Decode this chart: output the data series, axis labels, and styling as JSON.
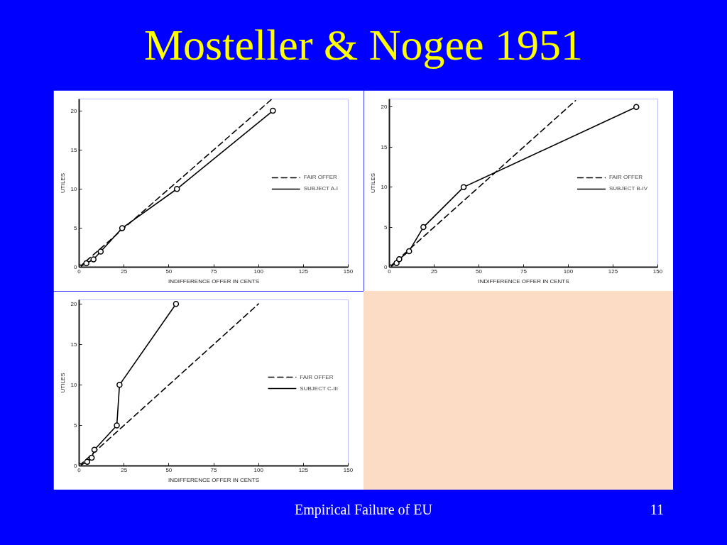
{
  "chart_data": [
    {
      "type": "line",
      "title": "Mosteller & Nogee 1951",
      "xlabel": "INDIFFERENCE OFFER IN CENTS",
      "ylabel": "UTILES",
      "xlim": [
        0,
        150
      ],
      "ylim": [
        0,
        21.5
      ],
      "xticks": [
        0,
        25,
        50,
        75,
        100,
        125,
        150
      ],
      "yticks": [
        0,
        5,
        10,
        15,
        20
      ],
      "legend": "right",
      "series": [
        {
          "name": "FAIR OFFER",
          "color": "#000000",
          "line_style": "dashed",
          "x": [
            0,
            107.5
          ],
          "values": [
            0,
            21.5
          ]
        },
        {
          "name": "SUBJECT A-I",
          "color": "#000000",
          "marker": "circle",
          "x": [
            0,
            4,
            8,
            12,
            24,
            54.5,
            108
          ],
          "values": [
            0,
            0.5,
            1,
            2,
            5,
            10,
            20
          ]
        }
      ]
    },
    {
      "type": "line",
      "xlabel": "INDIFFERENCE OFFER IN CENTS",
      "ylabel": "UTILES",
      "xlim": [
        0,
        150
      ],
      "ylim": [
        0,
        21
      ],
      "xticks": [
        0,
        25,
        50,
        75,
        100,
        125,
        150
      ],
      "yticks": [
        0,
        5,
        10,
        15,
        20
      ],
      "legend": "right",
      "series": [
        {
          "name": "FAIR OFFER",
          "color": "#000000",
          "line_style": "dashed",
          "x": [
            0,
            104
          ],
          "values": [
            0,
            20.8
          ]
        },
        {
          "name": "SUBJECT B-IV",
          "color": "#000000",
          "marker": "circle",
          "x": [
            0,
            4,
            5.5,
            11,
            19,
            41.5,
            138
          ],
          "values": [
            0,
            0.5,
            1,
            2,
            5,
            10,
            20
          ]
        }
      ]
    },
    {
      "type": "line",
      "xlabel": "INDIFFERENCE OFFER IN CENTS",
      "ylabel": "UTILES",
      "xlim": [
        0,
        150
      ],
      "ylim": [
        0,
        20.5
      ],
      "xticks": [
        0,
        25,
        50,
        75,
        100,
        125,
        150
      ],
      "yticks": [
        0,
        5,
        10,
        15,
        20
      ],
      "legend": "right",
      "annotations": [
        "Empirical Failure of EU",
        "11"
      ],
      "series": [
        {
          "name": "FAIR OFFER",
          "color": "#000000",
          "line_style": "dashed",
          "x": [
            0,
            100
          ],
          "values": [
            0,
            20
          ]
        },
        {
          "name": "SUBJECT C-III",
          "color": "#000000",
          "marker": "circle",
          "x": [
            0,
            4.5,
            7,
            8.5,
            21,
            22.5,
            54
          ],
          "values": [
            0,
            0.5,
            1,
            2,
            5,
            10,
            20
          ]
        }
      ]
    }
  ]
}
